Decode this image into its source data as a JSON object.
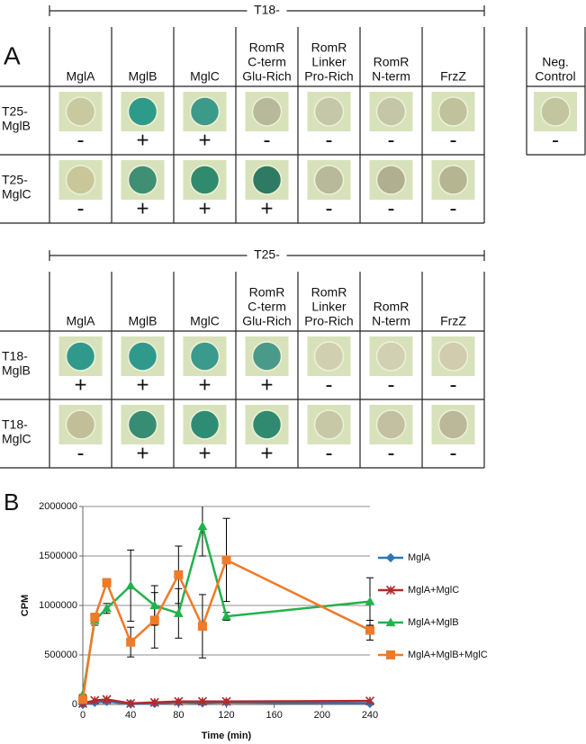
{
  "panel_a": {
    "label": "A",
    "tables": [
      {
        "group": "T18-",
        "columns": [
          [
            "MglA"
          ],
          [
            "MglB"
          ],
          [
            "MglC"
          ],
          [
            "RomR",
            "C-term",
            "Glu-Rich"
          ],
          [
            "RomR",
            "Linker",
            "Pro-Rich"
          ],
          [
            "RomR",
            "N-term"
          ],
          [
            "FrzZ"
          ]
        ],
        "rows": [
          {
            "label": [
              "T25-",
              "MglB"
            ],
            "cells": [
              "-",
              "+",
              "+",
              "-",
              "-",
              "-",
              "-"
            ],
            "colors": [
              "#c9c9a0",
              "#2e9a8a",
              "#3b9a8a",
              "#b7b99a",
              "#c5c8a8",
              "#c3c7a8",
              "#c0c29c"
            ]
          },
          {
            "label": [
              "T25-",
              "MglC"
            ],
            "cells": [
              "-",
              "+",
              "+",
              "+",
              "-",
              "-",
              "-"
            ],
            "colors": [
              "#c9c79a",
              "#3f8f74",
              "#2f8a6e",
              "#2f7a62",
              "#b7b99a",
              "#b0b090",
              "#b5b592"
            ]
          }
        ]
      },
      {
        "group": "T25-",
        "columns": [
          [
            "MglA"
          ],
          [
            "MglB"
          ],
          [
            "MglC"
          ],
          [
            "RomR",
            "C-term",
            "Glu-Rich"
          ],
          [
            "RomR",
            "Linker",
            "Pro-Rich"
          ],
          [
            "RomR",
            "N-term"
          ],
          [
            "FrzZ"
          ]
        ],
        "rows": [
          {
            "label": [
              "T18-",
              "MglB"
            ],
            "cells": [
              "+",
              "+",
              "+",
              "+",
              "-",
              "-",
              "-"
            ],
            "colors": [
              "#2f9a8c",
              "#2f9a8c",
              "#3a9a8c",
              "#4a9a8a",
              "#d0d0b0",
              "#d2d0b2",
              "#d2ccae"
            ]
          },
          {
            "label": [
              "T18-",
              "MglC"
            ],
            "cells": [
              "-",
              "+",
              "+",
              "+",
              "-",
              "-",
              "-"
            ],
            "colors": [
              "#c0bf98",
              "#368d73",
              "#2f8c74",
              "#2f8a70",
              "#c6c8a6",
              "#c2c0a0",
              "#bab898"
            ]
          }
        ]
      }
    ],
    "control": {
      "header": [
        "Neg.",
        "Control"
      ],
      "cell": "-",
      "color": "#c2c59e"
    }
  },
  "chart_data": {
    "type": "line",
    "label": "B",
    "x_label": "Time (min)",
    "y_label": "CPM",
    "x": [
      0,
      10,
      20,
      40,
      60,
      80,
      100,
      120,
      240
    ],
    "xlim": [
      0,
      240
    ],
    "xticks": [
      0,
      40,
      80,
      120,
      160,
      200,
      240
    ],
    "ylim": [
      0,
      2000000
    ],
    "yticks": [
      0,
      500000,
      1000000,
      1500000,
      2000000
    ],
    "grid": true,
    "legend": "right",
    "series": [
      {
        "name": "MglA",
        "color": "#2f75b5",
        "marker": "diamond",
        "values": [
          0,
          20000,
          30000,
          5000,
          10000,
          20000,
          15000,
          20000,
          10000
        ]
      },
      {
        "name": "MglA+MglC",
        "color": "#b22a2a",
        "marker": "star",
        "values": [
          10000,
          40000,
          50000,
          10000,
          20000,
          30000,
          30000,
          30000,
          35000
        ]
      },
      {
        "name": "MglA+MglB",
        "color": "#22b14c",
        "marker": "triangle",
        "values": [
          100000,
          850000,
          970000,
          1200000,
          1000000,
          920000,
          1800000,
          890000,
          1040000
        ],
        "errors": [
          0,
          50000,
          50000,
          360000,
          200000,
          250000,
          300000,
          40000,
          240000
        ]
      },
      {
        "name": "MglA+MglB+MglC",
        "color": "#f07a28",
        "marker": "square",
        "values": [
          50000,
          880000,
          1230000,
          630000,
          850000,
          1310000,
          790000,
          1460000,
          750000
        ],
        "errors": [
          0,
          40000,
          40000,
          150000,
          280000,
          290000,
          320000,
          420000,
          100000
        ]
      }
    ]
  }
}
